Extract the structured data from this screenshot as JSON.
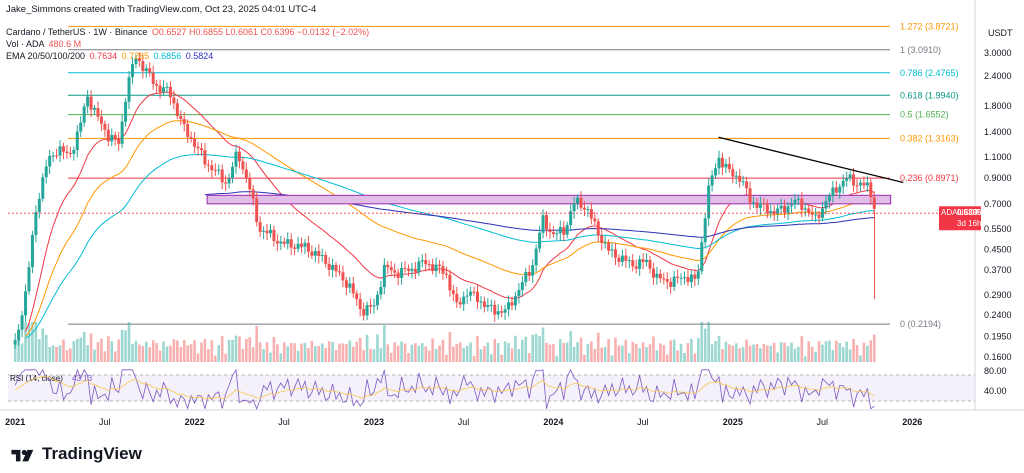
{
  "credit": "Jake_Simmons created with TradingView.com, Oct 23, 2025 04:01 UTC-4",
  "legend": {
    "symbol": "Cardano / TetherUS · 1W · Binance",
    "ohlc": "O0.6527 H0.6855 L0.6061 C0.6396 −0.0132 (−2.02%)",
    "vol_label": "Vol · ADA",
    "vol_value": "480.6 M",
    "ema_label": "EMA 20/50/100/200",
    "ema_values": [
      "0.7634",
      "0.7265",
      "0.6856",
      "0.5824"
    ]
  },
  "currency": "USDT",
  "brand": "TradingView",
  "colors": {
    "up": "#26a69a",
    "down": "#ef5350",
    "ema20": "#f23645",
    "ema50": "#ff9800",
    "ema100": "#00bcd4",
    "ema200": "#2e2eb8",
    "rsi": "#7e57c2",
    "rsi_ma": "#f9c74f",
    "zone_fill": "#e1bee7",
    "zone_border": "#9c27b0",
    "trendline": "#000000",
    "price_tag": "#f23645"
  },
  "chart_data": {
    "type": "candlestick",
    "scale": "log",
    "y_ticks": [
      "3.0000",
      "2.4000",
      "1.8000",
      "1.4000",
      "1.1000",
      "0.9000",
      "0.7000",
      "0.5500",
      "0.4500",
      "0.3700",
      "0.2900",
      "0.2400",
      "0.1950",
      "0.1600"
    ],
    "x_ticks": [
      "2021",
      "Jul",
      "2022",
      "Jul",
      "2023",
      "Jul",
      "2024",
      "Jul",
      "2025",
      "Jul",
      "2026"
    ],
    "fib_levels": [
      {
        "label": "1.272 (3.8721)",
        "value": 3.8721,
        "color": "#ff9800"
      },
      {
        "label": "1 (3.0910)",
        "value": 3.091,
        "color": "#787b86"
      },
      {
        "label": "0.786 (2.4765)",
        "value": 2.4765,
        "color": "#00bcd4"
      },
      {
        "label": "0.618 (1.9940)",
        "value": 1.994,
        "color": "#089981"
      },
      {
        "label": "0.5 (1.6552)",
        "value": 1.6552,
        "color": "#4caf50"
      },
      {
        "label": "0.382 (1.3163)",
        "value": 1.3163,
        "color": "#ff9800"
      },
      {
        "label": "0.236 (0.8971)",
        "value": 0.8971,
        "color": "#f23645"
      },
      {
        "label": "0 (0.2194)",
        "value": 0.2194,
        "color": "#787b86"
      }
    ],
    "last_price": {
      "symbol": "ADAUSDT",
      "value": "0.6396",
      "countdown": "3d 16h"
    },
    "price_path": [
      [
        2021.0,
        0.18
      ],
      [
        2021.06,
        0.3
      ],
      [
        2021.12,
        0.7
      ],
      [
        2021.18,
        1.05
      ],
      [
        2021.24,
        1.2
      ],
      [
        2021.3,
        1.1
      ],
      [
        2021.36,
        1.45
      ],
      [
        2021.4,
        2.0
      ],
      [
        2021.46,
        1.6
      ],
      [
        2021.52,
        1.35
      ],
      [
        2021.58,
        1.25
      ],
      [
        2021.62,
        2.1
      ],
      [
        2021.67,
        2.9
      ],
      [
        2021.72,
        2.6
      ],
      [
        2021.78,
        2.2
      ],
      [
        2021.86,
        2.05
      ],
      [
        2021.94,
        1.45
      ],
      [
        2022.0,
        1.25
      ],
      [
        2022.06,
        1.05
      ],
      [
        2022.12,
        0.95
      ],
      [
        2022.18,
        0.85
      ],
      [
        2022.24,
        1.15
      ],
      [
        2022.3,
        0.85
      ],
      [
        2022.36,
        0.55
      ],
      [
        2022.42,
        0.52
      ],
      [
        2022.48,
        0.48
      ],
      [
        2022.56,
        0.47
      ],
      [
        2022.62,
        0.46
      ],
      [
        2022.7,
        0.42
      ],
      [
        2022.78,
        0.37
      ],
      [
        2022.86,
        0.32
      ],
      [
        2022.93,
        0.25
      ],
      [
        2023.0,
        0.26
      ],
      [
        2023.06,
        0.38
      ],
      [
        2023.12,
        0.36
      ],
      [
        2023.2,
        0.37
      ],
      [
        2023.28,
        0.4
      ],
      [
        2023.34,
        0.38
      ],
      [
        2023.4,
        0.36
      ],
      [
        2023.46,
        0.26
      ],
      [
        2023.52,
        0.3
      ],
      [
        2023.58,
        0.28
      ],
      [
        2023.66,
        0.25
      ],
      [
        2023.74,
        0.25
      ],
      [
        2023.82,
        0.32
      ],
      [
        2023.88,
        0.38
      ],
      [
        2023.94,
        0.6
      ],
      [
        2024.0,
        0.52
      ],
      [
        2024.06,
        0.54
      ],
      [
        2024.12,
        0.72
      ],
      [
        2024.18,
        0.68
      ],
      [
        2024.24,
        0.55
      ],
      [
        2024.3,
        0.45
      ],
      [
        2024.36,
        0.42
      ],
      [
        2024.44,
        0.39
      ],
      [
        2024.52,
        0.4
      ],
      [
        2024.58,
        0.34
      ],
      [
        2024.66,
        0.33
      ],
      [
        2024.74,
        0.35
      ],
      [
        2024.8,
        0.33
      ],
      [
        2024.86,
        0.78
      ],
      [
        2024.92,
        1.1
      ],
      [
        2024.98,
        0.95
      ],
      [
        2025.04,
        0.9
      ],
      [
        2025.1,
        0.72
      ],
      [
        2025.16,
        0.68
      ],
      [
        2025.22,
        0.65
      ],
      [
        2025.28,
        0.66
      ],
      [
        2025.34,
        0.72
      ],
      [
        2025.4,
        0.68
      ],
      [
        2025.46,
        0.6
      ],
      [
        2025.52,
        0.72
      ],
      [
        2025.58,
        0.82
      ],
      [
        2025.64,
        0.9
      ],
      [
        2025.7,
        0.85
      ],
      [
        2025.76,
        0.82
      ],
      [
        2025.8,
        0.64
      ]
    ]
  }
}
